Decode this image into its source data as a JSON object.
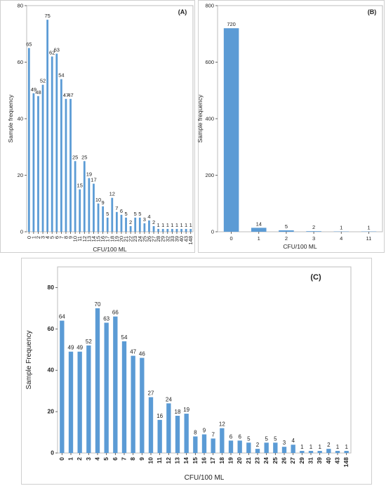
{
  "chart_data": [
    {
      "type": "bar",
      "panel_label": "(A)",
      "xlabel": "CFU/100 ML",
      "ylabel": "Sample frequency",
      "ylim": [
        0,
        80
      ],
      "yticks": [
        0,
        20,
        40,
        60,
        80
      ],
      "categories": [
        "0",
        "1",
        "2",
        "3",
        "4",
        "5",
        "6",
        "7",
        "8",
        "9",
        "10",
        "11",
        "12",
        "13",
        "14",
        "15",
        "16",
        "17",
        "18",
        "19",
        "20",
        "21",
        "22",
        "23",
        "24",
        "25",
        "26",
        "27",
        "28",
        "29",
        "32",
        "33",
        "39",
        "40",
        "43",
        "148"
      ],
      "values": [
        65,
        49,
        48,
        52,
        75,
        62,
        63,
        54,
        47,
        47,
        25,
        15,
        25,
        19,
        17,
        10,
        9,
        5,
        12,
        7,
        6,
        5,
        2,
        5,
        5,
        3,
        4,
        2,
        1,
        1,
        1,
        1,
        1,
        1,
        1,
        1
      ],
      "color": "#5b9bd5"
    },
    {
      "type": "bar",
      "panel_label": "(B)",
      "xlabel": "CFU/100 ML",
      "ylabel": "Sample frequency",
      "ylim": [
        0,
        800
      ],
      "yticks": [
        0,
        200,
        400,
        600,
        800
      ],
      "categories": [
        "0",
        "1",
        "2",
        "3",
        "4",
        "11"
      ],
      "values": [
        720,
        14,
        5,
        2,
        1,
        1
      ],
      "color": "#5b9bd5"
    },
    {
      "type": "bar",
      "panel_label": "(C)",
      "xlabel": "CFU/100 ML",
      "ylabel": "Sample Frequency",
      "ylim": [
        0,
        90
      ],
      "yticks": [
        0,
        20,
        40,
        60,
        80
      ],
      "categories": [
        "0",
        "1",
        "2",
        "3",
        "4",
        "5",
        "6",
        "7",
        "8",
        "9",
        "10",
        "11",
        "12",
        "13",
        "14",
        "15",
        "16",
        "17",
        "18",
        "19",
        "20",
        "21",
        "23",
        "24",
        "25",
        "26",
        "27",
        "29",
        "31",
        "39",
        "40",
        "43",
        "148"
      ],
      "values": [
        64,
        49,
        49,
        52,
        70,
        63,
        66,
        54,
        47,
        46,
        27,
        16,
        24,
        18,
        19,
        8,
        9,
        7,
        12,
        6,
        6,
        5,
        2,
        5,
        5,
        3,
        4,
        1,
        1,
        1,
        2,
        1,
        1
      ],
      "color": "#5b9bd5"
    }
  ]
}
